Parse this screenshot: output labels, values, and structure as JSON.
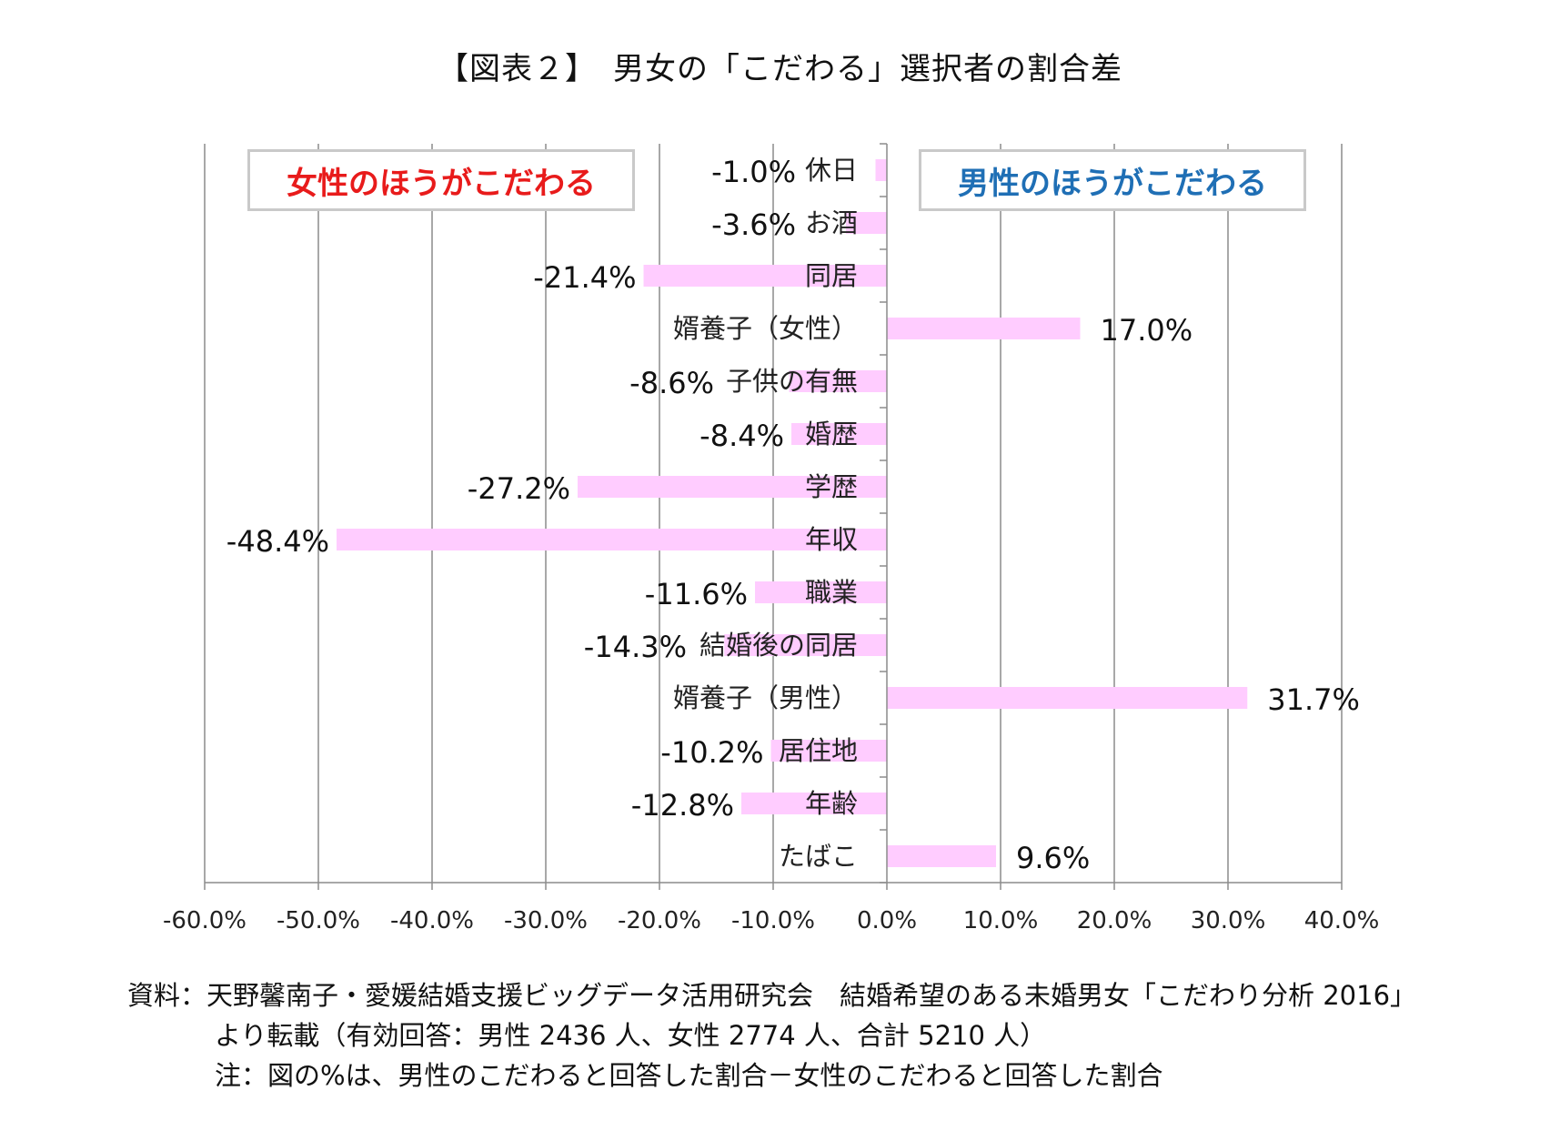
{
  "title": "【図表２】　男女の「こだわる」選択者の割合差",
  "legend": {
    "women": "女性のほうがこだわる",
    "men": "男性のほうがこだわる"
  },
  "chart_data": {
    "type": "bar",
    "orientation": "horizontal",
    "categories": [
      "休日",
      "お酒",
      "同居",
      "婿養子（女性）",
      "子供の有無",
      "婚歴",
      "学歴",
      "年収",
      "職業",
      "結婚後の同居",
      "婿養子（男性）",
      "居住地",
      "年齢",
      "たばこ"
    ],
    "values": [
      -1.0,
      -3.6,
      -21.4,
      17.0,
      -8.6,
      -8.4,
      -27.2,
      -48.4,
      -11.6,
      -14.3,
      31.7,
      -10.2,
      -12.8,
      9.6
    ],
    "value_labels": [
      "-1.0%",
      "-3.6%",
      "-21.4%",
      "17.0%",
      "-8.6%",
      "-8.4%",
      "-27.2%",
      "-48.4%",
      "-11.6%",
      "-14.3%",
      "31.7%",
      "-10.2%",
      "-12.8%",
      "9.6%"
    ],
    "xlim": [
      -60,
      40
    ],
    "x_ticks": [
      "-60.0%",
      "-50.0%",
      "-40.0%",
      "-30.0%",
      "-20.0%",
      "-10.0%",
      "0.0%",
      "10.0%",
      "20.0%",
      "30.0%",
      "40.0%"
    ],
    "bar_color": "#ffccff",
    "grid": true
  },
  "source": {
    "line1": "資料：天野馨南子・愛媛結婚支援ビッグデータ活用研究会　結婚希望のある未婚男女「こだわり分析 2016」",
    "line2": "より転載（有効回答：男性 2436 人、女性 2774 人、合計 5210 人）",
    "line3": "注：図の%は、男性のこだわると回答した割合－女性のこだわると回答した割合"
  }
}
